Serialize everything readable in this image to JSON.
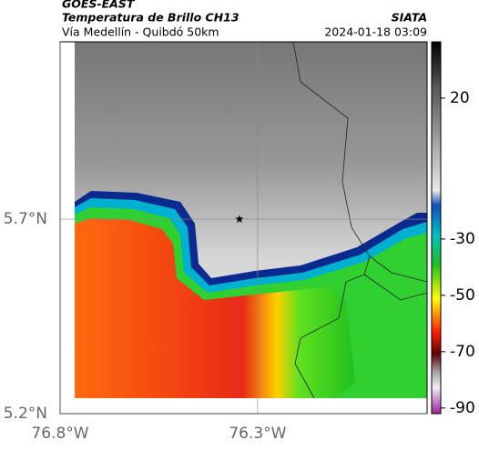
{
  "header": {
    "satellite": "GOES-EAST",
    "product": "Temperatura de Brillo CH13",
    "region": "Vía Medellín - Quibdó 50km",
    "source": "SIATA",
    "datetime": "2024-01-18 03:09"
  },
  "map": {
    "xlim": [
      -76.8,
      -75.871
    ],
    "ylim": [
      5.2,
      6.156
    ],
    "xticks": [
      {
        "value": -76.8,
        "label": "76.8°W"
      },
      {
        "value": -76.3,
        "label": "76.3°W"
      }
    ],
    "yticks": [
      {
        "value": 5.2,
        "label": "5.2°N"
      },
      {
        "value": 5.7,
        "label": "5.7°N"
      }
    ],
    "marker": {
      "lon": -76.346,
      "lat": 5.7
    }
  },
  "colorbar": {
    "lim": [
      -92,
      40
    ],
    "ticks": [
      20,
      -30,
      -50,
      -70,
      -90
    ]
  }
}
